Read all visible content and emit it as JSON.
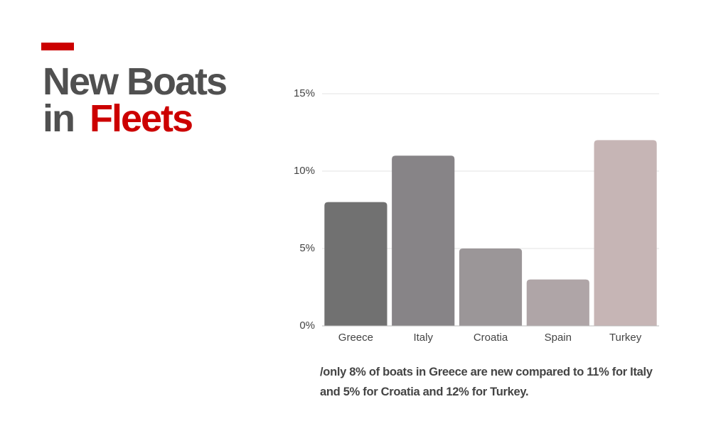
{
  "chart_data": {
    "type": "bar",
    "title_parts": [
      "New Boats",
      "in",
      "Fleets"
    ],
    "caption": "/only 8% of boats in  Greece are new compared to 11% for Italy and 5% for Croatia and 12% for Turkey.",
    "categories": [
      "Greece",
      "Italy",
      "Croatia",
      "Spain",
      "Turkey"
    ],
    "values": [
      8,
      11,
      5,
      3,
      12
    ],
    "colors": [
      "#717171",
      "#878487",
      "#9b9698",
      "#afa5a7",
      "#c6b5b5"
    ],
    "ylim": [
      0,
      15
    ],
    "yticks": [
      {
        "value": 0,
        "label": "0%"
      },
      {
        "value": 5,
        "label": "5%"
      },
      {
        "value": 10,
        "label": "10%"
      },
      {
        "value": 15,
        "label": "15%"
      }
    ],
    "grid": true
  }
}
